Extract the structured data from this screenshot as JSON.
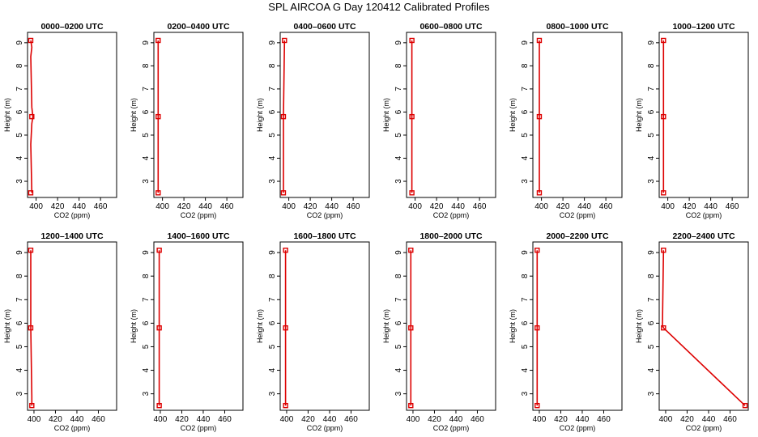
{
  "title": "SPL AIRCOA G  Day 120412  Calibrated Profiles",
  "colors": {
    "profile": "#dd0000",
    "axis": "#000000"
  },
  "chart_data": [
    {
      "type": "line",
      "title": "0000–0200 UTC",
      "xlabel": "CO2 (ppm)",
      "ylabel": "Height (m)",
      "xlim": [
        392,
        475
      ],
      "ylim": [
        2.3,
        9.45
      ],
      "xticks": [
        400,
        420,
        440,
        460
      ],
      "yticks": [
        3,
        4,
        5,
        6,
        7,
        8,
        9
      ],
      "series": [
        {
          "x": [
            396,
            395,
            396,
            397,
            396,
            395,
            396,
            395
          ],
          "y": [
            2.5,
            4.6,
            5.5,
            5.8,
            6.2,
            8.4,
            8.8,
            9.1
          ]
        }
      ],
      "markers": {
        "x": [
          395,
          396,
          395
        ],
        "y": [
          2.5,
          5.8,
          9.1
        ]
      }
    },
    {
      "type": "line",
      "title": "0200–0400 UTC",
      "xlabel": "CO2 (ppm)",
      "ylabel": "Height (m)",
      "xlim": [
        392,
        475
      ],
      "ylim": [
        2.3,
        9.45
      ],
      "xticks": [
        400,
        420,
        440,
        460
      ],
      "yticks": [
        3,
        4,
        5,
        6,
        7,
        8,
        9
      ],
      "series": [
        {
          "x": [
            396,
            396,
            396
          ],
          "y": [
            2.5,
            5.8,
            9.1
          ]
        }
      ],
      "markers": {
        "x": [
          396,
          396,
          396
        ],
        "y": [
          2.5,
          5.8,
          9.1
        ]
      }
    },
    {
      "type": "line",
      "title": "0400–0600 UTC",
      "xlabel": "CO2 (ppm)",
      "ylabel": "Height (m)",
      "xlim": [
        392,
        475
      ],
      "ylim": [
        2.3,
        9.45
      ],
      "xticks": [
        400,
        420,
        440,
        460
      ],
      "yticks": [
        3,
        4,
        5,
        6,
        7,
        8,
        9
      ],
      "series": [
        {
          "x": [
            395,
            395,
            396
          ],
          "y": [
            2.5,
            5.8,
            9.1
          ]
        }
      ],
      "markers": {
        "x": [
          395,
          395,
          396
        ],
        "y": [
          2.5,
          5.8,
          9.1
        ]
      }
    },
    {
      "type": "line",
      "title": "0600–0800 UTC",
      "xlabel": "CO2 (ppm)",
      "ylabel": "Height (m)",
      "xlim": [
        392,
        475
      ],
      "ylim": [
        2.3,
        9.45
      ],
      "xticks": [
        400,
        420,
        440,
        460
      ],
      "yticks": [
        3,
        4,
        5,
        6,
        7,
        8,
        9
      ],
      "series": [
        {
          "x": [
            397,
            397,
            397
          ],
          "y": [
            2.5,
            5.8,
            9.1
          ]
        }
      ],
      "markers": {
        "x": [
          397,
          397,
          397
        ],
        "y": [
          2.5,
          5.8,
          9.1
        ]
      }
    },
    {
      "type": "line",
      "title": "0800–1000 UTC",
      "xlabel": "CO2 (ppm)",
      "ylabel": "Height (m)",
      "xlim": [
        392,
        475
      ],
      "ylim": [
        2.3,
        9.45
      ],
      "xticks": [
        400,
        420,
        440,
        460
      ],
      "yticks": [
        3,
        4,
        5,
        6,
        7,
        8,
        9
      ],
      "series": [
        {
          "x": [
            398,
            398,
            398
          ],
          "y": [
            2.5,
            5.8,
            9.1
          ]
        }
      ],
      "markers": {
        "x": [
          398,
          398,
          398
        ],
        "y": [
          2.5,
          5.8,
          9.1
        ]
      }
    },
    {
      "type": "line",
      "title": "1000–1200 UTC",
      "xlabel": "CO2 (ppm)",
      "ylabel": "Height (m)",
      "xlim": [
        392,
        475
      ],
      "ylim": [
        2.3,
        9.45
      ],
      "xticks": [
        400,
        420,
        440,
        460
      ],
      "yticks": [
        3,
        4,
        5,
        6,
        7,
        8,
        9
      ],
      "series": [
        {
          "x": [
            396,
            396,
            396
          ],
          "y": [
            2.5,
            5.8,
            9.1
          ]
        }
      ],
      "markers": {
        "x": [
          396,
          396,
          396
        ],
        "y": [
          2.5,
          5.8,
          9.1
        ]
      }
    },
    {
      "type": "line",
      "title": "1200–1400 UTC",
      "xlabel": "CO2 (ppm)",
      "ylabel": "Height (m)",
      "xlim": [
        394,
        477
      ],
      "ylim": [
        2.3,
        9.45
      ],
      "xticks": [
        400,
        420,
        440,
        460
      ],
      "yticks": [
        3,
        4,
        5,
        6,
        7,
        8,
        9
      ],
      "series": [
        {
          "x": [
            398,
            398,
            397,
            397
          ],
          "y": [
            2.5,
            2.9,
            5.8,
            9.1
          ]
        }
      ],
      "markers": {
        "x": [
          398,
          397,
          397
        ],
        "y": [
          2.5,
          5.8,
          9.1
        ]
      }
    },
    {
      "type": "line",
      "title": "1400–1600 UTC",
      "xlabel": "CO2 (ppm)",
      "ylabel": "Height (m)",
      "xlim": [
        394,
        477
      ],
      "ylim": [
        2.3,
        9.45
      ],
      "xticks": [
        400,
        420,
        440,
        460
      ],
      "yticks": [
        3,
        4,
        5,
        6,
        7,
        8,
        9
      ],
      "series": [
        {
          "x": [
            399,
            399,
            399,
            399
          ],
          "y": [
            2.5,
            5.8,
            7.9,
            9.1
          ]
        }
      ],
      "markers": {
        "x": [
          399,
          399,
          399
        ],
        "y": [
          2.5,
          5.8,
          9.1
        ]
      }
    },
    {
      "type": "line",
      "title": "1600–1800 UTC",
      "xlabel": "CO2 (ppm)",
      "ylabel": "Height (m)",
      "xlim": [
        394,
        477
      ],
      "ylim": [
        2.3,
        9.45
      ],
      "xticks": [
        400,
        420,
        440,
        460
      ],
      "yticks": [
        3,
        4,
        5,
        6,
        7,
        8,
        9
      ],
      "series": [
        {
          "x": [
            399,
            399,
            399
          ],
          "y": [
            2.5,
            5.8,
            9.1
          ]
        }
      ],
      "markers": {
        "x": [
          399,
          399,
          399
        ],
        "y": [
          2.5,
          5.8,
          9.1
        ]
      }
    },
    {
      "type": "line",
      "title": "1800–2000 UTC",
      "xlabel": "CO2 (ppm)",
      "ylabel": "Height (m)",
      "xlim": [
        394,
        477
      ],
      "ylim": [
        2.3,
        9.45
      ],
      "xticks": [
        400,
        420,
        440,
        460
      ],
      "yticks": [
        3,
        4,
        5,
        6,
        7,
        8,
        9
      ],
      "series": [
        {
          "x": [
            398,
            398,
            398
          ],
          "y": [
            2.5,
            5.8,
            9.1
          ]
        }
      ],
      "markers": {
        "x": [
          398,
          398,
          398
        ],
        "y": [
          2.5,
          5.8,
          9.1
        ]
      }
    },
    {
      "type": "line",
      "title": "2000–2200 UTC",
      "xlabel": "CO2 (ppm)",
      "ylabel": "Height (m)",
      "xlim": [
        394,
        477
      ],
      "ylim": [
        2.3,
        9.45
      ],
      "xticks": [
        400,
        420,
        440,
        460
      ],
      "yticks": [
        3,
        4,
        5,
        6,
        7,
        8,
        9
      ],
      "series": [
        {
          "x": [
            398,
            398,
            398
          ],
          "y": [
            2.5,
            5.8,
            9.1
          ]
        }
      ],
      "markers": {
        "x": [
          398,
          398,
          398
        ],
        "y": [
          2.5,
          5.8,
          9.1
        ]
      }
    },
    {
      "type": "line",
      "title": "2200–2400 UTC",
      "xlabel": "CO2 (ppm)",
      "ylabel": "Height (m)",
      "xlim": [
        394,
        477
      ],
      "ylim": [
        2.3,
        9.45
      ],
      "xticks": [
        400,
        420,
        440,
        460
      ],
      "yticks": [
        3,
        4,
        5,
        6,
        7,
        8,
        9
      ],
      "series": [
        {
          "x": [
            474,
            398,
            397,
            398
          ],
          "y": [
            2.5,
            5.8,
            5.9,
            9.1
          ]
        }
      ],
      "markers": {
        "x": [
          474,
          398,
          398
        ],
        "y": [
          2.5,
          5.8,
          9.1
        ]
      }
    }
  ]
}
